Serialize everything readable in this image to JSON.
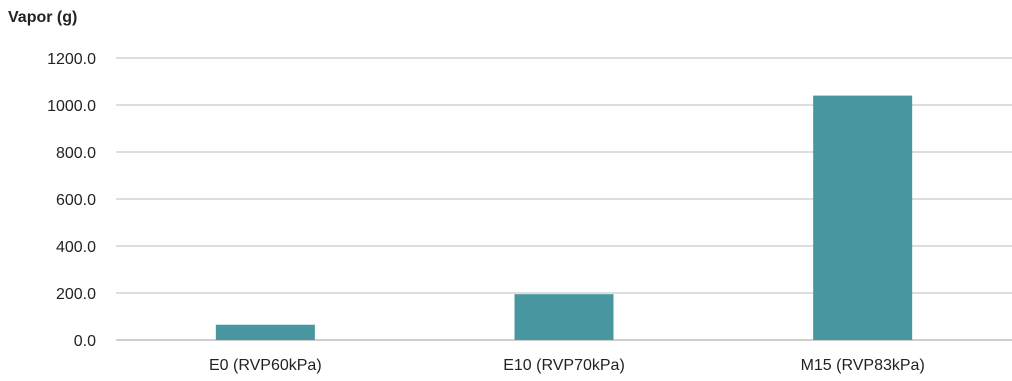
{
  "chart_data": {
    "type": "bar",
    "title": "",
    "xlabel": "",
    "ylabel": "Vapor (g)",
    "categories": [
      "E0 (RVP60kPa)",
      "E10 (RVP70kPa)",
      "M15 (RVP83kPa)"
    ],
    "values": [
      65,
      195,
      1040
    ],
    "ylim": [
      0,
      1200
    ],
    "yticks": [
      "0.0",
      "200.0",
      "400.0",
      "600.0",
      "800.0",
      "1000.0",
      "1200.0"
    ],
    "grid": true,
    "legend": "none",
    "colors": {
      "bar": "#4796a0",
      "grid": "#bdbdbd",
      "text": "#222222"
    }
  }
}
